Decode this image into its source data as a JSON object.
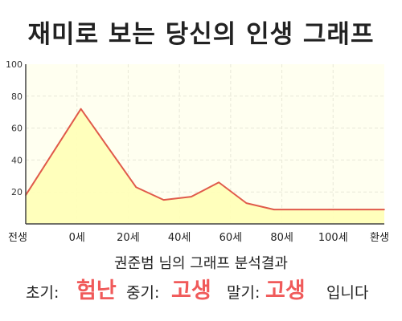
{
  "title": "재미로 보는 당신의 인생 그래프",
  "summary": {
    "name": "권준범",
    "suffix": "님의 그래프 분석결과"
  },
  "result": {
    "early_label": "초기:",
    "early_value": "험난",
    "mid_label": "중기:",
    "mid_value": "고생",
    "late_label": "말기:",
    "late_value": "고생",
    "ending": "입니다",
    "highlight_color": "#f05a5a"
  },
  "chart_data": {
    "type": "area",
    "title": "",
    "xlabel": "",
    "ylabel": "",
    "x_tick_labels": [
      "전생",
      "0세",
      "20세",
      "40세",
      "60세",
      "80세",
      "100세",
      "환생"
    ],
    "y_tick_labels": [
      "20",
      "40",
      "60",
      "80",
      "100"
    ],
    "ylim": [
      0,
      100
    ],
    "grid": true,
    "series": [
      {
        "x": [
          -20,
          0,
          20,
          30,
          40,
          50,
          60,
          70,
          80,
          90,
          100,
          110
        ],
        "values": [
          18,
          72,
          23,
          15,
          17,
          26,
          13,
          9,
          9,
          9,
          9,
          9
        ]
      }
    ],
    "colors": {
      "line": "#e05a4a",
      "fill": "#ffffb8",
      "plot_background": "#fffff0",
      "grid": "#e8e8d8"
    }
  }
}
